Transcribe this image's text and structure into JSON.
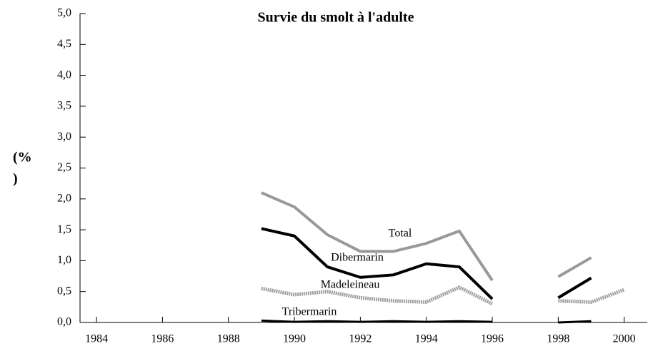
{
  "chart_data": {
    "type": "line",
    "title": "Survie du smolt à l'adulte",
    "y_label": [
      "(%",
      ")"
    ],
    "x": [
      1989,
      1990,
      1991,
      1992,
      1993,
      1994,
      1995,
      1996,
      1997,
      1998,
      1999,
      2000
    ],
    "series": [
      {
        "name": "Total",
        "color": "#999999",
        "values": [
          2.1,
          1.87,
          1.42,
          1.15,
          1.15,
          1.28,
          1.48,
          0.68,
          null,
          0.74,
          1.05,
          null
        ]
      },
      {
        "name": "Dibermarin",
        "color": "#000000",
        "values": [
          1.52,
          1.4,
          0.9,
          0.73,
          0.77,
          0.95,
          0.9,
          0.38,
          null,
          0.4,
          0.72,
          null
        ]
      },
      {
        "name": "Madeleineau",
        "color": "#a0a0a0",
        "values": [
          0.55,
          0.45,
          0.5,
          0.4,
          0.35,
          0.33,
          0.57,
          0.3,
          null,
          0.35,
          0.33,
          0.53
        ]
      },
      {
        "name": "Tribermarin",
        "color": "#000000",
        "values": [
          0.03,
          0.01,
          0.02,
          0.01,
          0.02,
          0.01,
          0.02,
          0.01,
          null,
          0.0,
          0.02,
          null
        ]
      }
    ],
    "xlim": [
      1983.5,
      2000.7
    ],
    "xticks": [
      1984,
      1986,
      1988,
      1990,
      1992,
      1994,
      1996,
      1998,
      2000
    ],
    "ylim": [
      0,
      5
    ],
    "yticks": [
      {
        "value": 0,
        "label": "0,0"
      },
      {
        "value": 0.5,
        "label": "0,5"
      },
      {
        "value": 1,
        "label": "1,0"
      },
      {
        "value": 1.5,
        "label": "1,5"
      },
      {
        "value": 2,
        "label": "2,0"
      },
      {
        "value": 2.5,
        "label": "2,5"
      },
      {
        "value": 3,
        "label": "3,0"
      },
      {
        "value": 3.5,
        "label": "3,5"
      },
      {
        "value": 4,
        "label": "4,0"
      },
      {
        "value": 4.5,
        "label": "4,5"
      },
      {
        "value": 5,
        "label": "5,0"
      }
    ]
  }
}
